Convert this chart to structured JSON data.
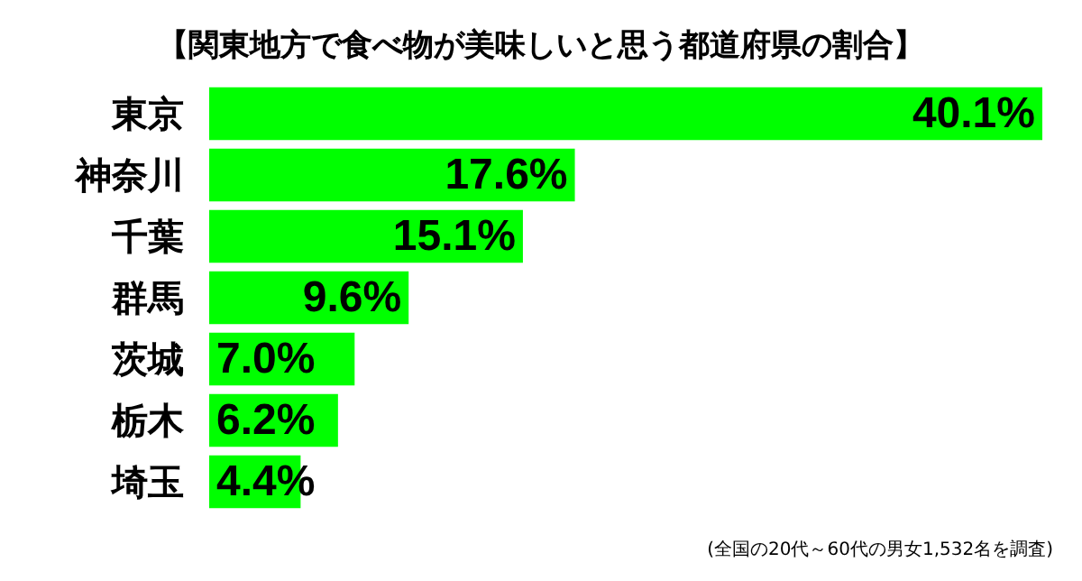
{
  "chart_data": {
    "type": "bar",
    "orientation": "horizontal",
    "title": "【関東地方で食べ物が美味しいと思う都道府県の割合】",
    "categories": [
      "東京",
      "神奈川",
      "千葉",
      "群馬",
      "茨城",
      "栃木",
      "埼玉"
    ],
    "values": [
      40.1,
      17.6,
      15.1,
      9.6,
      7.0,
      6.2,
      4.4
    ],
    "value_labels": [
      "40.1%",
      "17.6%",
      "15.1%",
      "9.6%",
      "7.0%",
      "6.2%",
      "4.4%"
    ],
    "color": "#00ff00",
    "annotations": [
      "(全国の20代～60代の男女1,532名を調査)"
    ]
  }
}
